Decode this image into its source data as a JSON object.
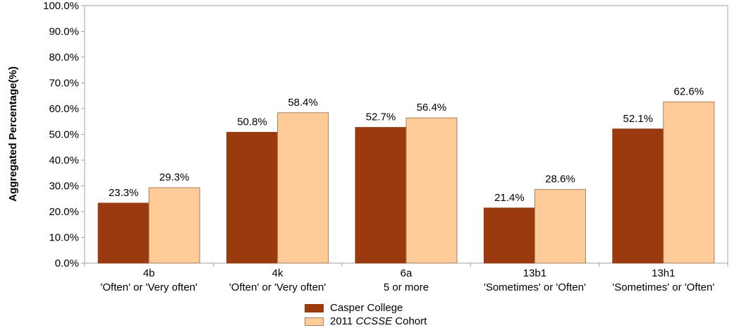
{
  "chart_data": {
    "type": "bar",
    "categories": [
      {
        "code": "4b",
        "label": "'Often' or 'Very often'"
      },
      {
        "code": "4k",
        "label": "'Often' or 'Very often'"
      },
      {
        "code": "6a",
        "label": "5 or more"
      },
      {
        "code": "13b1",
        "label": "'Sometimes' or 'Often'"
      },
      {
        "code": "13h1",
        "label": "'Sometimes' or 'Often'"
      }
    ],
    "series": [
      {
        "name": "Casper College",
        "values": [
          23.3,
          50.8,
          52.7,
          21.4,
          52.1
        ],
        "color": "#9b3a0e"
      },
      {
        "name_pre": "2011 ",
        "name_em": "CCSSE",
        "name_post": " Cohort",
        "values": [
          29.3,
          58.4,
          56.4,
          28.6,
          62.6
        ],
        "color": "#ffcc99"
      }
    ],
    "ylabel": "Aggregated Percentage(%)",
    "ylim": [
      0,
      100
    ],
    "yticks": [
      "0.0%",
      "10.0%",
      "20.0%",
      "30.0%",
      "40.0%",
      "50.0%",
      "60.0%",
      "70.0%",
      "80.0%",
      "90.0%",
      "100.0%"
    ],
    "value_format": "%",
    "grid": false,
    "legend_position": "bottom-center"
  }
}
